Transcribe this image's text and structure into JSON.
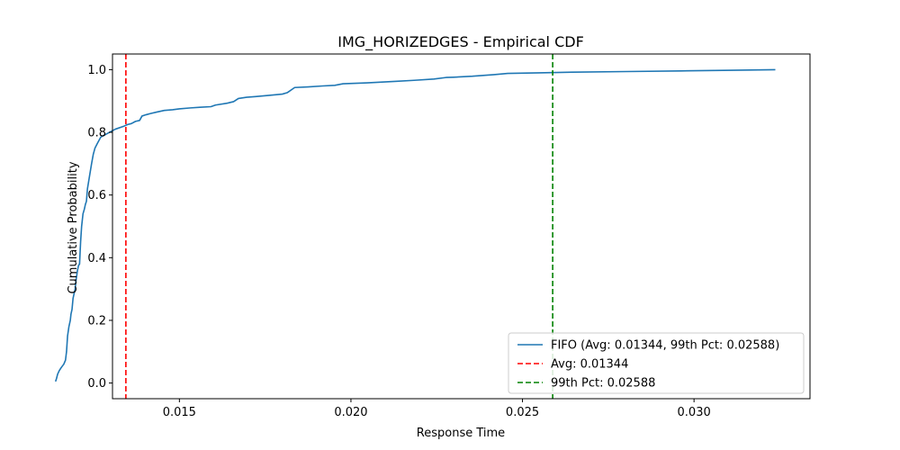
{
  "chart_data": {
    "type": "line",
    "title": "IMG_HORIZEDGES - Empirical CDF",
    "xlabel": "Response Time",
    "ylabel": "Cumulative Probability",
    "xlim": [
      0.01305,
      0.03338
    ],
    "ylim": [
      -0.05,
      1.05
    ],
    "xticks": [
      0.015,
      0.02,
      0.025,
      0.03
    ],
    "xtick_labels": [
      "0.015",
      "0.020",
      "0.025",
      "0.030"
    ],
    "yticks": [
      0.0,
      0.2,
      0.4,
      0.6,
      0.8,
      1.0
    ],
    "ytick_labels": [
      "0.0",
      "0.2",
      "0.4",
      "0.6",
      "0.8",
      "1.0"
    ],
    "grid": false,
    "legend_position": "lower-right",
    "series": [
      {
        "name": "FIFO (Avg: 0.01344, 99th Pct: 0.02588)",
        "color": "#1f77b4",
        "style": "solid",
        "x": [
          0.01139,
          0.01142,
          0.01145,
          0.0115,
          0.01156,
          0.01163,
          0.01168,
          0.01171,
          0.01174,
          0.01178,
          0.01182,
          0.01184,
          0.01187,
          0.0119,
          0.01193,
          0.01196,
          0.01199,
          0.01203,
          0.01206,
          0.01209,
          0.01212,
          0.01215,
          0.01219,
          0.01223,
          0.01226,
          0.01229,
          0.01232,
          0.01235,
          0.01238,
          0.01241,
          0.01244,
          0.01249,
          0.01254,
          0.01261,
          0.01271,
          0.01283,
          0.01296,
          0.01313,
          0.01339,
          0.01349,
          0.0136,
          0.01372,
          0.01384,
          0.01391,
          0.01402,
          0.01416,
          0.01435,
          0.01456,
          0.0148,
          0.015,
          0.01533,
          0.0156,
          0.01592,
          0.01605,
          0.01639,
          0.01658,
          0.01672,
          0.01696,
          0.01722,
          0.01762,
          0.018,
          0.01815,
          0.01836,
          0.01875,
          0.01918,
          0.01953,
          0.01977,
          0.02047,
          0.02134,
          0.02184,
          0.02242,
          0.02277,
          0.02299,
          0.02354,
          0.02417,
          0.02457,
          0.02548,
          0.02598,
          0.02647,
          0.02802,
          0.02962,
          0.03113,
          0.03237
        ],
        "y": [
          0.005,
          0.015,
          0.028,
          0.04,
          0.05,
          0.06,
          0.073,
          0.1,
          0.15,
          0.18,
          0.2,
          0.22,
          0.235,
          0.27,
          0.285,
          0.3,
          0.33,
          0.36,
          0.375,
          0.38,
          0.45,
          0.5,
          0.54,
          0.555,
          0.57,
          0.58,
          0.62,
          0.64,
          0.66,
          0.68,
          0.7,
          0.73,
          0.75,
          0.765,
          0.785,
          0.792,
          0.8,
          0.81,
          0.82,
          0.825,
          0.828,
          0.835,
          0.838,
          0.852,
          0.856,
          0.86,
          0.865,
          0.87,
          0.872,
          0.875,
          0.878,
          0.88,
          0.882,
          0.887,
          0.893,
          0.898,
          0.908,
          0.912,
          0.914,
          0.918,
          0.922,
          0.927,
          0.943,
          0.945,
          0.948,
          0.95,
          0.955,
          0.958,
          0.963,
          0.966,
          0.97,
          0.975,
          0.976,
          0.979,
          0.984,
          0.988,
          0.99,
          0.991,
          0.992,
          0.994,
          0.996,
          0.998,
          1.0
        ]
      },
      {
        "name": "Avg: 0.01344",
        "color": "#ff0000",
        "style": "dashed",
        "vline_x": 0.01344
      },
      {
        "name": "99th Pct: 0.02588",
        "color": "#008000",
        "style": "dashed",
        "vline_x": 0.02588
      }
    ]
  }
}
